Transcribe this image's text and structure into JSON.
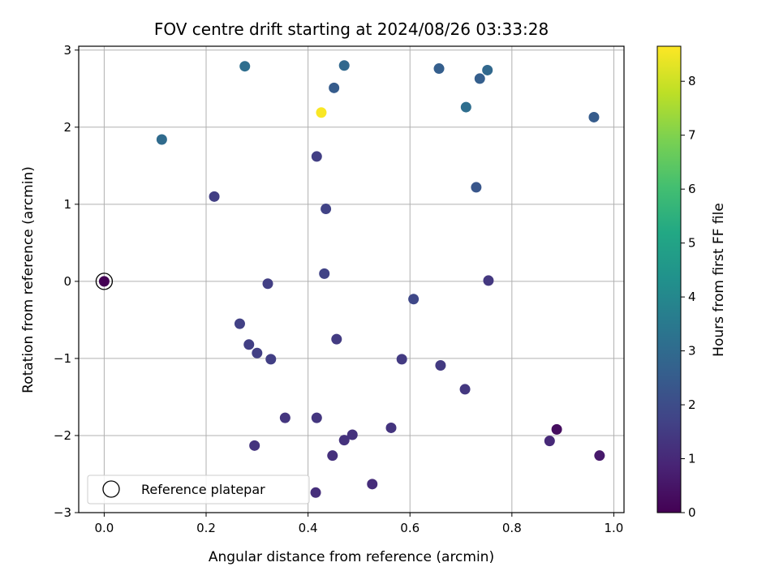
{
  "chart_data": {
    "type": "scatter",
    "title": "FOV centre drift starting at 2024/08/26 03:33:28",
    "xlabel": "Angular distance from reference (arcmin)",
    "ylabel": "Rotation from reference (arcmin)",
    "xlim": [
      -0.05,
      1.02
    ],
    "ylim": [
      -3.0,
      3.05
    ],
    "x_ticks": [
      0.0,
      0.2,
      0.4,
      0.6,
      0.8,
      1.0
    ],
    "x_tick_labels": [
      "0.0",
      "0.2",
      "0.4",
      "0.6",
      "0.8",
      "1.0"
    ],
    "y_ticks": [
      -3,
      -2,
      -1,
      0,
      1,
      2,
      3
    ],
    "y_tick_labels": [
      "−3",
      "−2",
      "−1",
      "0",
      "1",
      "2",
      "3"
    ],
    "grid": true,
    "colorbar": {
      "label": "Hours from first FF file",
      "colormap": "viridis",
      "range": [
        0,
        8.65
      ],
      "ticks": [
        0,
        1,
        2,
        3,
        4,
        5,
        6,
        7,
        8
      ],
      "tick_labels": [
        "0",
        "1",
        "2",
        "3",
        "4",
        "5",
        "6",
        "7",
        "8"
      ]
    },
    "reference": {
      "label": "Reference platepar",
      "x": 0.0,
      "y": 0.0
    },
    "legend": {
      "position": "lower-left",
      "entries": [
        "Reference platepar"
      ]
    },
    "points": [
      {
        "x": 0.0,
        "y": 0.0,
        "hours": 0.0
      },
      {
        "x": 0.888,
        "y": -1.92,
        "hours": 0.3
      },
      {
        "x": 0.972,
        "y": -2.26,
        "hours": 0.6
      },
      {
        "x": 0.874,
        "y": -2.07,
        "hours": 1.0
      },
      {
        "x": 0.526,
        "y": -2.63,
        "hours": 1.1
      },
      {
        "x": 0.415,
        "y": -2.74,
        "hours": 1.15
      },
      {
        "x": 0.448,
        "y": -2.26,
        "hours": 1.2
      },
      {
        "x": 0.471,
        "y": -2.06,
        "hours": 1.25
      },
      {
        "x": 0.487,
        "y": -1.99,
        "hours": 1.25
      },
      {
        "x": 0.563,
        "y": -1.9,
        "hours": 1.3
      },
      {
        "x": 0.295,
        "y": -2.13,
        "hours": 1.3
      },
      {
        "x": 0.355,
        "y": -1.77,
        "hours": 1.35
      },
      {
        "x": 0.417,
        "y": -1.77,
        "hours": 1.35
      },
      {
        "x": 0.708,
        "y": -1.4,
        "hours": 1.4
      },
      {
        "x": 0.66,
        "y": -1.09,
        "hours": 1.45
      },
      {
        "x": 0.754,
        "y": 0.01,
        "hours": 1.4
      },
      {
        "x": 0.584,
        "y": -1.01,
        "hours": 1.5
      },
      {
        "x": 0.456,
        "y": -0.75,
        "hours": 1.5
      },
      {
        "x": 0.327,
        "y": -1.01,
        "hours": 1.6
      },
      {
        "x": 0.3,
        "y": -0.93,
        "hours": 1.6
      },
      {
        "x": 0.284,
        "y": -0.82,
        "hours": 1.6
      },
      {
        "x": 0.266,
        "y": -0.55,
        "hours": 1.65
      },
      {
        "x": 0.321,
        "y": -0.03,
        "hours": 1.6
      },
      {
        "x": 0.432,
        "y": 0.1,
        "hours": 1.7
      },
      {
        "x": 0.607,
        "y": -0.23,
        "hours": 1.85
      },
      {
        "x": 0.435,
        "y": 0.94,
        "hours": 1.7
      },
      {
        "x": 0.417,
        "y": 1.62,
        "hours": 1.6
      },
      {
        "x": 0.216,
        "y": 1.1,
        "hours": 1.6
      },
      {
        "x": 0.73,
        "y": 1.22,
        "hours": 2.3
      },
      {
        "x": 0.961,
        "y": 2.13,
        "hours": 2.5
      },
      {
        "x": 0.113,
        "y": 1.84,
        "hours": 3.0
      },
      {
        "x": 0.71,
        "y": 2.26,
        "hours": 3.1
      },
      {
        "x": 0.737,
        "y": 2.63,
        "hours": 2.6
      },
      {
        "x": 0.752,
        "y": 2.74,
        "hours": 2.9
      },
      {
        "x": 0.657,
        "y": 2.76,
        "hours": 2.6
      },
      {
        "x": 0.451,
        "y": 2.51,
        "hours": 2.5
      },
      {
        "x": 0.471,
        "y": 2.8,
        "hours": 2.9
      },
      {
        "x": 0.276,
        "y": 2.79,
        "hours": 3.1
      },
      {
        "x": 0.426,
        "y": 2.19,
        "hours": 8.6
      }
    ]
  }
}
